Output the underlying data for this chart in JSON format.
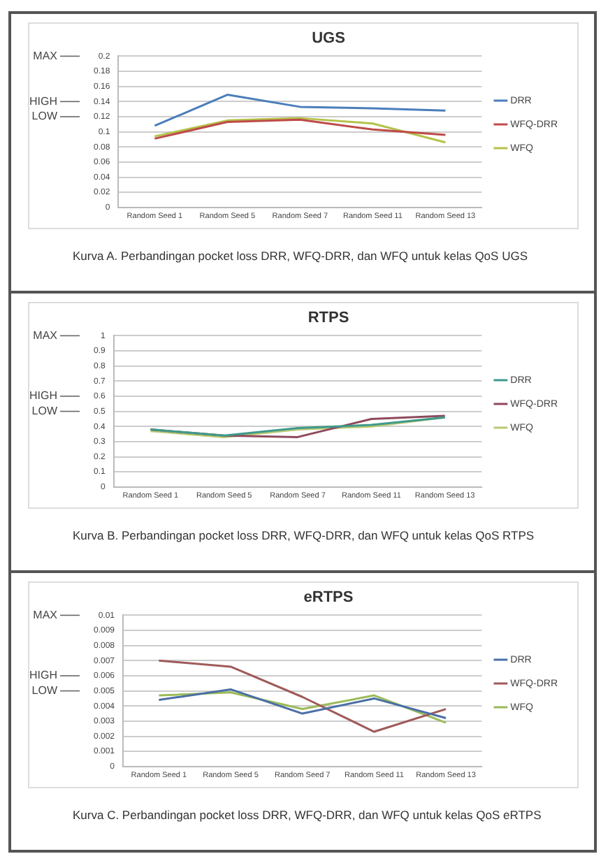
{
  "chart_data": [
    {
      "type": "line",
      "title": "UGS",
      "categories": [
        "Random Seed 1",
        "Random Seed 5",
        "Random Seed 7",
        "Random Seed 11",
        "Random Seed 13"
      ],
      "series": [
        {
          "name": "DRR",
          "color": "#4a7ebb",
          "values": [
            0.108,
            0.149,
            0.133,
            0.131,
            0.128
          ]
        },
        {
          "name": "WFQ-DRR",
          "color": "#be4b48",
          "values": [
            0.091,
            0.113,
            0.116,
            0.103,
            0.096
          ]
        },
        {
          "name": "WFQ",
          "color": "#b5c24a",
          "values": [
            0.094,
            0.115,
            0.118,
            0.111,
            0.086
          ]
        }
      ],
      "ylim": [
        0,
        0.2
      ],
      "yticks": [
        0,
        0.02,
        0.04,
        0.06,
        0.08,
        0.1,
        0.12,
        0.14,
        0.16,
        0.18,
        0.2
      ],
      "grid": "y",
      "legend": "right",
      "marker": "none",
      "ref_lines": [
        {
          "axis": "y",
          "value": 0.2,
          "label": "MAX"
        },
        {
          "axis": "y",
          "value": 0.14,
          "label": "HIGH"
        },
        {
          "axis": "y",
          "value": 0.12,
          "label": "LOW"
        }
      ],
      "annotations": [
        "Kurva A. Perbandingan pocket loss DRR, WFQ-DRR, dan WFQ untuk kelas QoS UGS"
      ]
    },
    {
      "type": "line",
      "title": "RTPS",
      "categories": [
        "Random Seed 1",
        "Random Seed 5",
        "Random Seed 7",
        "Random Seed 11",
        "Random Seed 13"
      ],
      "series": [
        {
          "name": "DRR",
          "color": "#3f9a8c",
          "values": [
            0.38,
            0.34,
            0.39,
            0.41,
            0.46
          ]
        },
        {
          "name": "WFQ-DRR",
          "color": "#8e4a5c",
          "values": [
            0.38,
            0.34,
            0.33,
            0.45,
            0.47
          ]
        },
        {
          "name": "WFQ",
          "color": "#b8c870",
          "values": [
            0.37,
            0.33,
            0.38,
            0.4,
            0.46
          ]
        }
      ],
      "ylim": [
        0,
        1
      ],
      "yticks": [
        0,
        0.1,
        0.2,
        0.3,
        0.4,
        0.5,
        0.6,
        0.7,
        0.8,
        0.9,
        1
      ],
      "grid": "y",
      "legend": "right",
      "marker": "none",
      "ref_lines": [
        {
          "axis": "y",
          "value": 1,
          "label": "MAX"
        },
        {
          "axis": "y",
          "value": 0.6,
          "label": "HIGH"
        },
        {
          "axis": "y",
          "value": 0.5,
          "label": "LOW"
        }
      ],
      "annotations": [
        "Kurva B. Perbandingan pocket loss DRR, WFQ-DRR, dan WFQ untuk kelas QoS RTPS"
      ]
    },
    {
      "type": "line",
      "title": "eRTPS",
      "categories": [
        "Random Seed 1",
        "Random Seed 5",
        "Random Seed 7",
        "Random Seed 11",
        "Random Seed 13"
      ],
      "series": [
        {
          "name": "DRR",
          "color": "#4a6fa5",
          "values": [
            0.0044,
            0.0051,
            0.0035,
            0.0045,
            0.0032
          ]
        },
        {
          "name": "WFQ-DRR",
          "color": "#a05a5a",
          "values": [
            0.007,
            0.0066,
            0.0046,
            0.0023,
            0.0038
          ]
        },
        {
          "name": "WFQ",
          "color": "#9bbb59",
          "values": [
            0.0047,
            0.0049,
            0.0038,
            0.0047,
            0.0029
          ]
        }
      ],
      "ylim": [
        0,
        0.01
      ],
      "yticks": [
        0,
        0.001,
        0.002,
        0.003,
        0.004,
        0.005,
        0.006,
        0.007,
        0.008,
        0.009,
        0.01
      ],
      "grid": "y",
      "legend": "right",
      "marker": "none",
      "ref_lines": [
        {
          "axis": "y",
          "value": 0.01,
          "label": "MAX"
        },
        {
          "axis": "y",
          "value": 0.006,
          "label": "HIGH"
        },
        {
          "axis": "y",
          "value": 0.005,
          "label": "LOW"
        }
      ],
      "annotations": [
        "Kurva C. Perbandingan pocket loss DRR, WFQ-DRR, dan WFQ untuk kelas QoS eRTPS"
      ]
    }
  ]
}
